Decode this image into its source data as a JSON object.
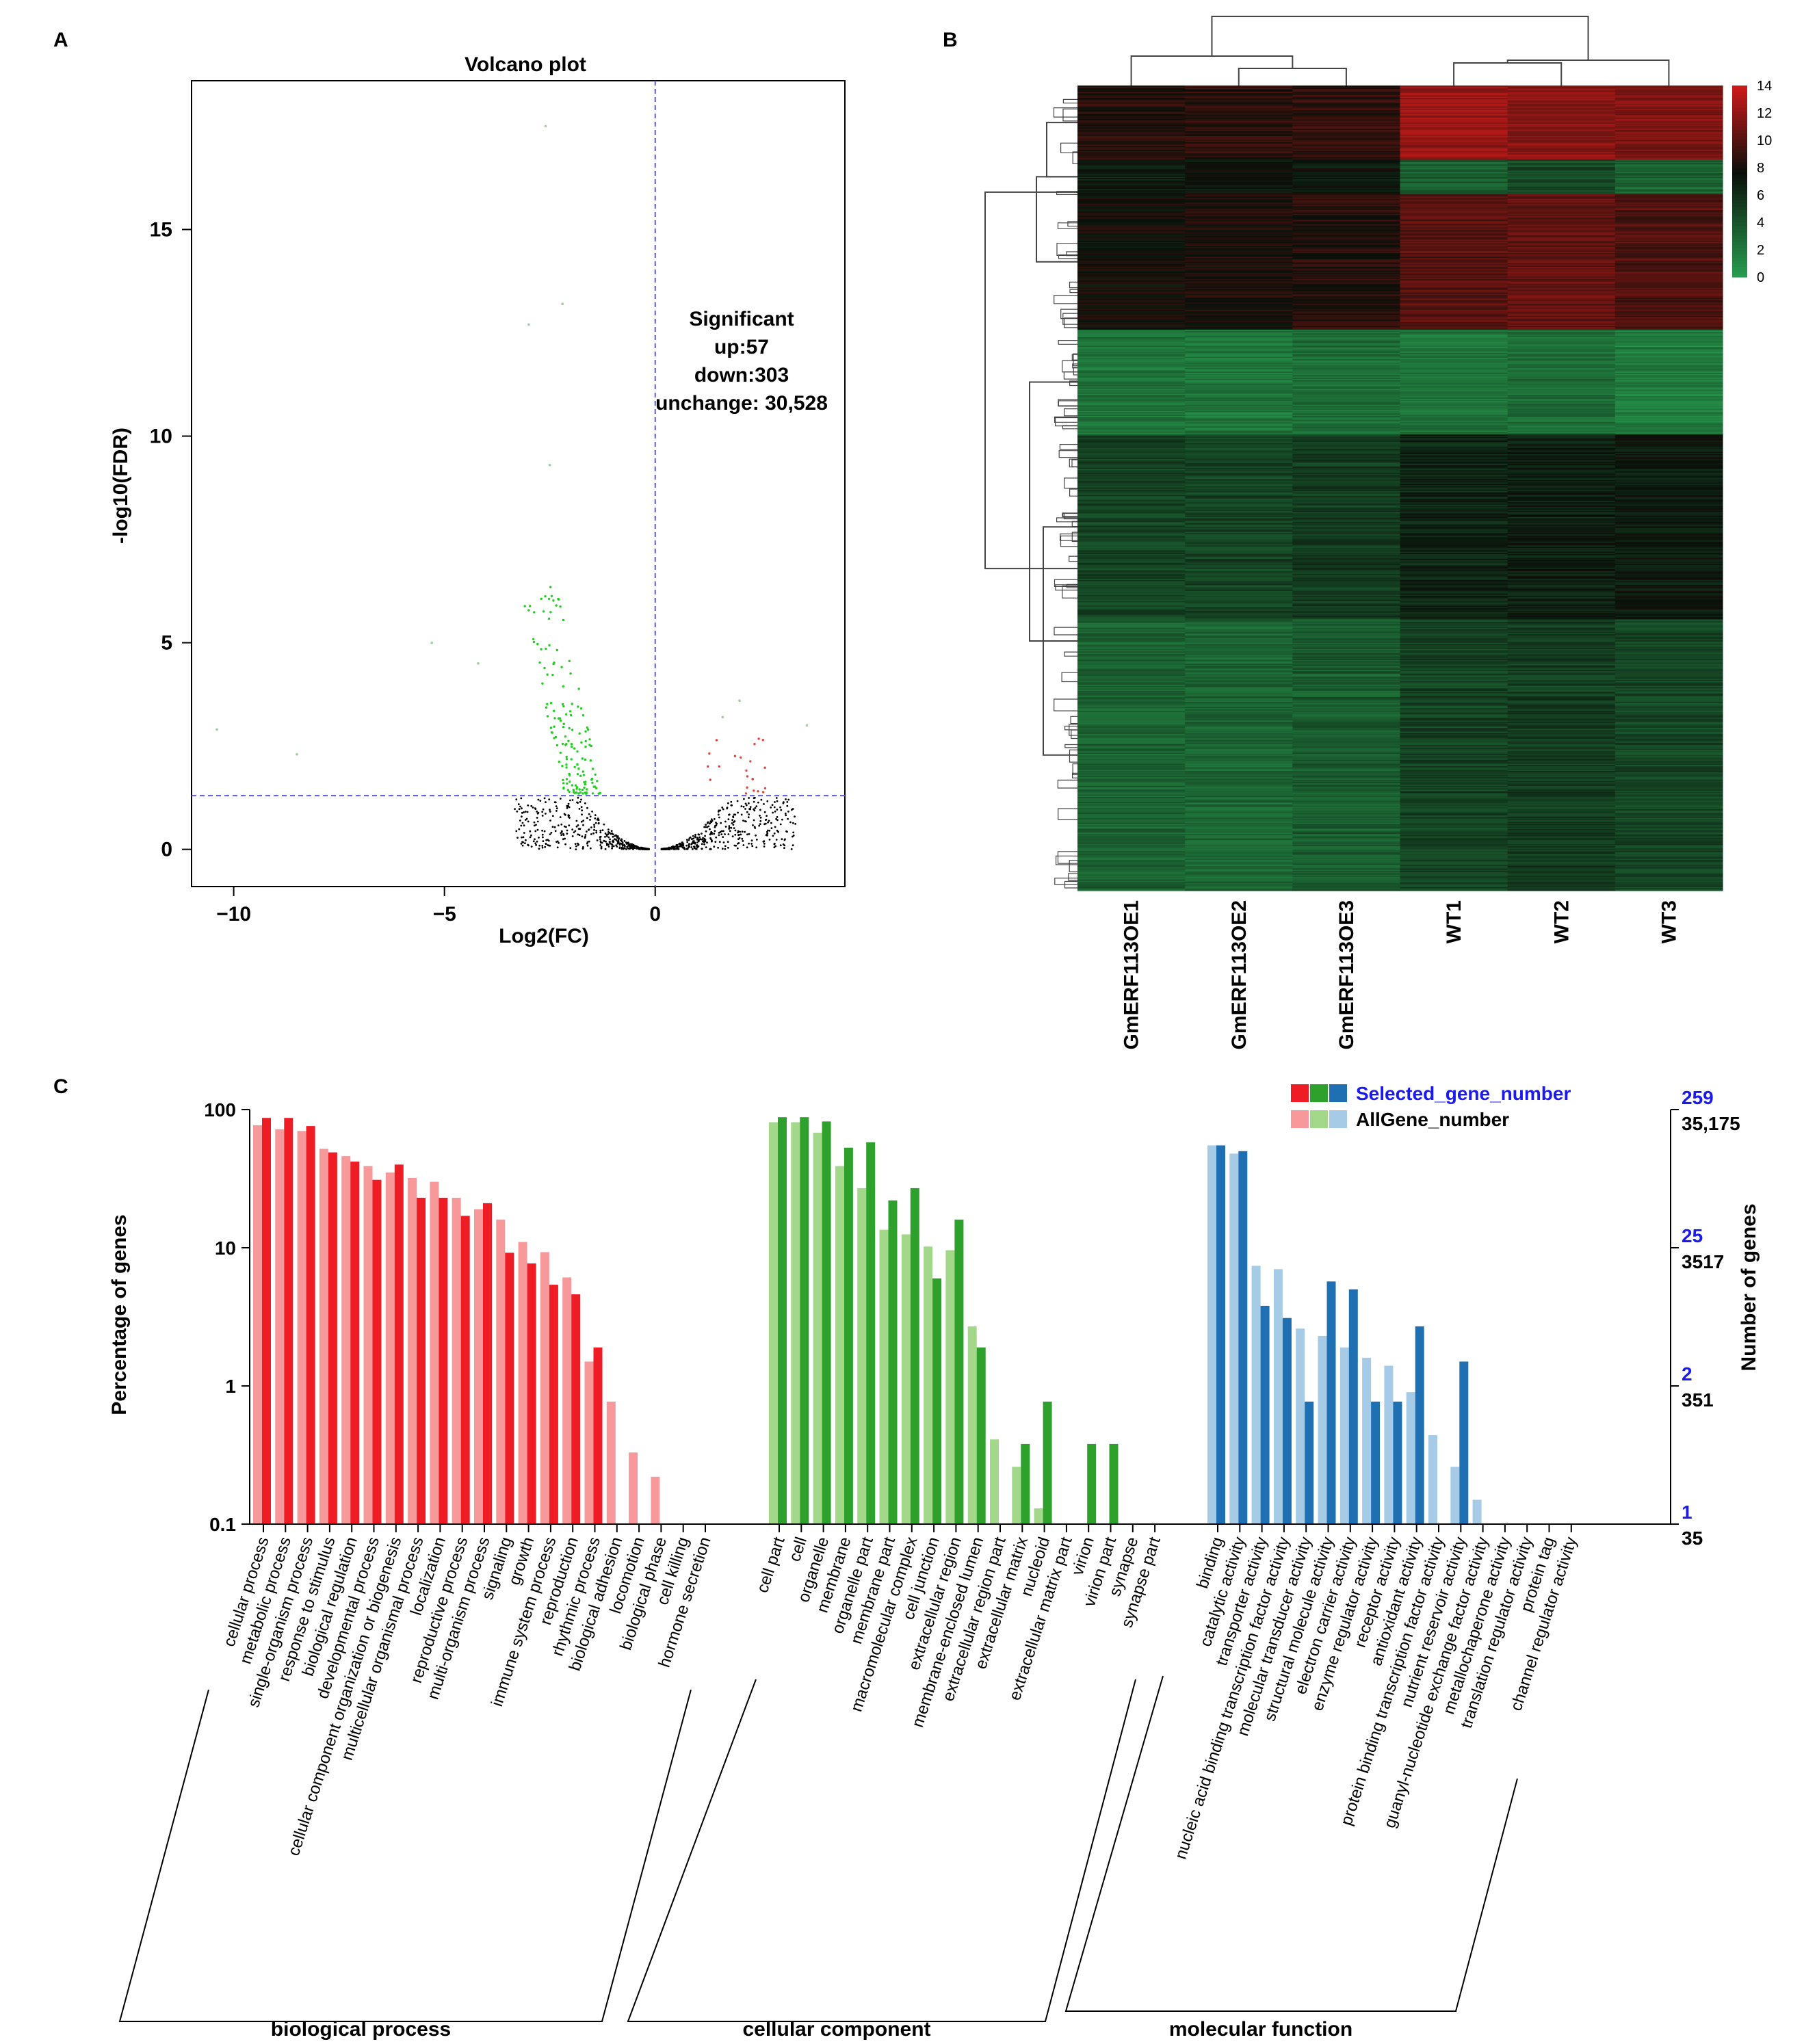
{
  "panels": {
    "A": "A",
    "B": "B",
    "C": "C"
  },
  "chart_data": [
    {
      "type": "scatter",
      "title": "Volcano plot",
      "xlabel": "Log2(FC)",
      "ylabel": "-log10(FDR)",
      "xlim": [
        -11,
        4.5
      ],
      "ylim": [
        -0.9,
        18.6
      ],
      "xticks": [
        -10,
        -5,
        0
      ],
      "yticks": [
        0,
        5,
        10,
        15
      ],
      "xtick_labels": [
        "−10",
        "−5",
        "0"
      ],
      "ytick_labels": [
        "0",
        "5",
        "10",
        "15"
      ],
      "threshold_fdr": 1.3,
      "threshold_fc": 0,
      "annotation": [
        "Significant",
        "up:57",
        "down:303",
        "unchange: 30,528"
      ],
      "colors": {
        "up": "#e0443e",
        "down": "#1fcf1f",
        "unchange": "#000000",
        "threshold": "#5b5bd6"
      },
      "highlighted_points": [
        {
          "x": -2.6,
          "y": 17.5
        },
        {
          "x": -2.2,
          "y": 13.2
        },
        {
          "x": -3.0,
          "y": 12.7
        },
        {
          "x": -2.5,
          "y": 9.3
        },
        {
          "x": -10.4,
          "y": 2.9
        },
        {
          "x": -8.5,
          "y": 2.3
        },
        {
          "x": -5.3,
          "y": 5.0
        },
        {
          "x": -4.2,
          "y": 4.5
        },
        {
          "x": 3.6,
          "y": 3.0
        },
        {
          "x": 2.0,
          "y": 3.6
        },
        {
          "x": 1.6,
          "y": 3.2
        }
      ]
    },
    {
      "type": "heatmap",
      "columns": [
        "GmERF113OE1",
        "GmERF113OE2",
        "GmERF113OE3",
        "WT1",
        "WT2",
        "WT3"
      ],
      "colorbar_ticks": [
        14,
        12,
        10,
        8,
        6,
        4,
        2,
        0
      ],
      "color_scale": [
        "#28a050",
        "#0a0f0a",
        "#cc1a1a"
      ],
      "scale_range": [
        0,
        14
      ],
      "row_blocks": [
        {
          "rows": 60,
          "values": [
            8.6,
            8.8,
            9.0,
            12.2,
            11.8,
            11.5
          ]
        },
        {
          "rows": 28,
          "values": [
            7.0,
            7.4,
            7.3,
            3.6,
            4.6,
            3.3
          ]
        },
        {
          "rows": 110,
          "values": [
            7.9,
            8.2,
            8.6,
            10.2,
            10.6,
            9.9
          ]
        },
        {
          "rows": 85,
          "values": [
            2.4,
            2.2,
            2.8,
            2.4,
            2.8,
            2.0
          ]
        },
        {
          "rows": 150,
          "values": [
            5.0,
            5.0,
            5.4,
            6.5,
            6.9,
            7.1
          ]
        },
        {
          "rows": 220,
          "values": [
            3.3,
            3.2,
            3.7,
            5.0,
            5.3,
            4.8
          ]
        }
      ]
    },
    {
      "type": "bar",
      "ylabel": "Percentage of genes",
      "y2label": "Number of genes",
      "yscale": "log",
      "ylim": [
        0.1,
        100
      ],
      "yticks": [
        "100",
        "10",
        "1",
        "0.1"
      ],
      "right_axis_selected": [
        "259",
        "25",
        "2",
        "1"
      ],
      "right_axis_all": [
        "35,175",
        "3517",
        "351",
        "35"
      ],
      "legend": [
        "Selected_gene_number",
        "AllGene_number"
      ],
      "legend_position": "top-right",
      "colors": {
        "biological process": [
          "#ee1c25",
          "#f7999b"
        ],
        "cellular component": [
          "#2ea02c",
          "#a3d88a"
        ],
        "molecular function": [
          "#1f6fb3",
          "#a5cbe6"
        ]
      },
      "groups": [
        {
          "name": "biological process",
          "categories": [
            {
              "label": "cellular process",
              "all": 77,
              "selected": 87
            },
            {
              "label": "metabolic process",
              "all": 72,
              "selected": 87
            },
            {
              "label": "single-organism process",
              "all": 70,
              "selected": 76
            },
            {
              "label": "response to stimulus",
              "all": 52,
              "selected": 49
            },
            {
              "label": "biological regulation",
              "all": 46,
              "selected": 42
            },
            {
              "label": "developmental process",
              "all": 39,
              "selected": 31
            },
            {
              "label": "cellular component organization or biogenesis",
              "all": 35,
              "selected": 40
            },
            {
              "label": "multicellular organismal process",
              "all": 32,
              "selected": 23
            },
            {
              "label": "localization",
              "all": 30,
              "selected": 23
            },
            {
              "label": "reproductive process",
              "all": 23,
              "selected": 17
            },
            {
              "label": "multi-organism process",
              "all": 19,
              "selected": 21
            },
            {
              "label": "signaling",
              "all": 16,
              "selected": 9.2
            },
            {
              "label": "growth",
              "all": 11,
              "selected": 7.7
            },
            {
              "label": "immune system process",
              "all": 9.3,
              "selected": 5.4
            },
            {
              "label": "reproduction",
              "all": 6.1,
              "selected": 4.6
            },
            {
              "label": "rhythmic process",
              "all": 1.5,
              "selected": 1.9
            },
            {
              "label": "biological adhesion",
              "all": 0.77,
              "selected": null
            },
            {
              "label": "locomotion",
              "all": 0.33,
              "selected": null
            },
            {
              "label": "biological phase",
              "all": 0.22,
              "selected": null
            },
            {
              "label": "cell killing",
              "all": null,
              "selected": null
            },
            {
              "label": "hormone secretion",
              "all": null,
              "selected": null
            }
          ]
        },
        {
          "name": "cellular component",
          "categories": [
            {
              "label": "cell part",
              "all": 81,
              "selected": 88
            },
            {
              "label": "cell",
              "all": 81,
              "selected": 88
            },
            {
              "label": "organelle",
              "all": 68,
              "selected": 82
            },
            {
              "label": "membrane",
              "all": 39,
              "selected": 53
            },
            {
              "label": "organelle part",
              "all": 27,
              "selected": 58
            },
            {
              "label": "membrane part",
              "all": 13.5,
              "selected": 22
            },
            {
              "label": "macromolecular complex",
              "all": 12.5,
              "selected": 27
            },
            {
              "label": "cell junction",
              "all": 10.2,
              "selected": 6.0
            },
            {
              "label": "extracellular region",
              "all": 9.6,
              "selected": 16
            },
            {
              "label": "membrane-enclosed lumen",
              "all": 2.7,
              "selected": 1.9
            },
            {
              "label": "extracellular region part",
              "all": 0.41,
              "selected": null
            },
            {
              "label": "extracellular matrix",
              "all": 0.26,
              "selected": 0.38
            },
            {
              "label": "nucleoid",
              "all": 0.13,
              "selected": 0.77
            },
            {
              "label": "extracellular matrix part",
              "all": null,
              "selected": null
            },
            {
              "label": "virion",
              "all": null,
              "selected": 0.38
            },
            {
              "label": "virion part",
              "all": null,
              "selected": 0.38
            },
            {
              "label": "synapse",
              "all": null,
              "selected": null
            },
            {
              "label": "synapse part",
              "all": null,
              "selected": null
            }
          ]
        },
        {
          "name": "molecular function",
          "categories": [
            {
              "label": "binding",
              "all": 55,
              "selected": 55
            },
            {
              "label": "catalytic activity",
              "all": 48,
              "selected": 50
            },
            {
              "label": "transporter activity",
              "all": 7.4,
              "selected": 3.8
            },
            {
              "label": "nucleic acid binding transcription factor activity",
              "all": 7.0,
              "selected": 3.1
            },
            {
              "label": "molecular transducer activity",
              "all": 2.6,
              "selected": 0.77
            },
            {
              "label": "structural molecule activity",
              "all": 2.3,
              "selected": 5.7
            },
            {
              "label": "electron carrier activity",
              "all": 1.9,
              "selected": 5.0
            },
            {
              "label": "enzyme regulator activity",
              "all": 1.6,
              "selected": 0.77
            },
            {
              "label": "receptor activity",
              "all": 1.4,
              "selected": 0.77
            },
            {
              "label": "antioxidant activity",
              "all": 0.9,
              "selected": 2.7
            },
            {
              "label": "protein binding transcription factor activity",
              "all": 0.44,
              "selected": null
            },
            {
              "label": "nutrient reservoir activity",
              "all": 0.26,
              "selected": 1.5
            },
            {
              "label": "guanyl-nucleotide exchange factor activity",
              "all": 0.15,
              "selected": null
            },
            {
              "label": "metallochaperone activity",
              "all": null,
              "selected": null
            },
            {
              "label": "translation regulator activity",
              "all": null,
              "selected": null
            },
            {
              "label": "protein tag",
              "all": null,
              "selected": null
            },
            {
              "label": "channel regulator activity",
              "all": null,
              "selected": null
            }
          ]
        }
      ]
    }
  ]
}
